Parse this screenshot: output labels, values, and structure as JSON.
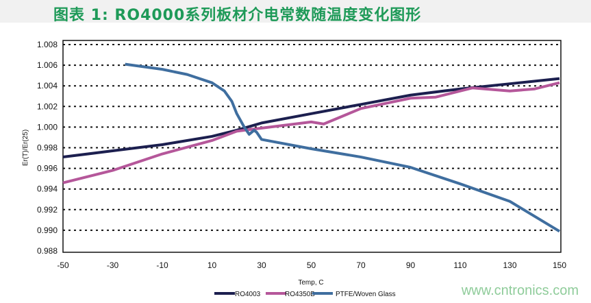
{
  "chart_data": {
    "type": "line",
    "title": "图表 1: RO4000系列板材介电常数随温度变化图形",
    "xlabel": "Temp, C",
    "ylabel": "Er(T)/Er(25)",
    "xlim": [
      -50,
      150
    ],
    "ylim": [
      0.988,
      1.008
    ],
    "xticks": [
      "-50",
      "-30",
      "-10",
      "10",
      "30",
      "50",
      "70",
      "90",
      "110",
      "130",
      "150"
    ],
    "yticks": [
      "0.988",
      "0.990",
      "0.992",
      "0.994",
      "0.996",
      "0.998",
      "1.000",
      "1.002",
      "1.004",
      "1.006",
      "1.008"
    ],
    "grid": "horizontal dotted",
    "legend": "bottom",
    "series": [
      {
        "name": "RO4003",
        "color": "#1c1f4f",
        "x": [
          -50,
          -30,
          -10,
          10,
          20,
          30,
          50,
          70,
          90,
          110,
          130,
          150
        ],
        "y": [
          0.9971,
          0.9977,
          0.9983,
          0.9991,
          0.9997,
          1.0004,
          1.0013,
          1.0022,
          1.0031,
          1.0037,
          1.0042,
          1.0047
        ]
      },
      {
        "name": "RO4350B",
        "color": "#b5579a",
        "x": [
          -50,
          -30,
          -10,
          10,
          20,
          30,
          50,
          55,
          70,
          90,
          100,
          115,
          130,
          140,
          150
        ],
        "y": [
          0.9946,
          0.9958,
          0.9974,
          0.9987,
          0.9996,
          0.9999,
          1.0005,
          1.0003,
          1.0018,
          1.0028,
          1.0029,
          1.0038,
          1.0035,
          1.0037,
          1.0043
        ]
      },
      {
        "name": "PTFE/Woven Glass",
        "color": "#3f6e9f",
        "x": [
          -25,
          -10,
          0,
          10,
          15,
          18,
          20,
          23,
          25,
          27,
          28,
          30,
          50,
          70,
          90,
          110,
          130,
          150
        ],
        "y": [
          1.0061,
          1.0056,
          1.0051,
          1.0043,
          1.0035,
          1.0025,
          1.0013,
          1.0,
          0.9993,
          0.9997,
          0.9995,
          0.9988,
          0.9979,
          0.9971,
          0.9961,
          0.9945,
          0.9928,
          0.9899
        ]
      }
    ]
  },
  "watermark": "www.cntronics.com"
}
